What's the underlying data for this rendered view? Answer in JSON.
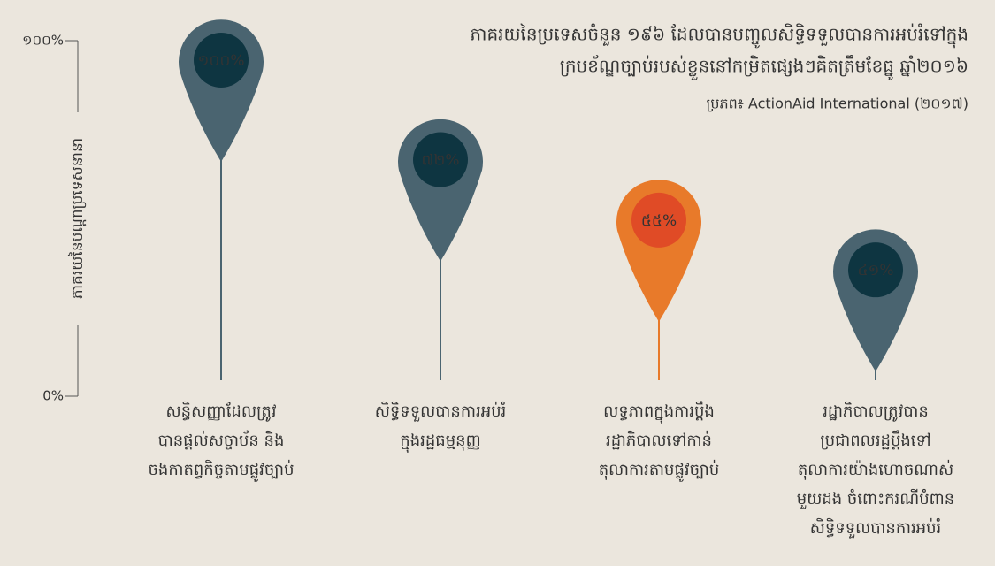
{
  "chart_data": {
    "type": "pin",
    "title": [
      "ភាគរយនៃប្រទេសចំនួន ១៩៦ ដែលបានបញ្ចូលសិទ្ធិទទួលបានការអប់រំទៅក្នុង",
      "ក្របខ័ណ្ឌច្បាប់របស់ខ្លួននៅកម្រិតផ្សេងៗគិតត្រឹមខែធ្នូ ឆ្នាំ២០១៦"
    ],
    "source": "ប្រភព៖ ActionAid International (២០១៧)",
    "ylabel": "ភាគរយនៃបណ្ដាប្រទេសនានា",
    "categories": [
      [
        "សន្ធិសញ្ញាដែលត្រូវ",
        "បានផ្ដល់សច្ចាប័ន និង",
        "ចងកាតព្វកិច្ចតាមផ្លូវច្បាប់"
      ],
      [
        "សិទ្ធិទទួលបានការអប់រំ",
        "ក្នុងរដ្ឋធម្មនុញ្ញ"
      ],
      [
        "លទ្ធភាពក្នុងការប្ដឹង",
        "រដ្ឋាភិបាលទៅកាន់",
        "តុលាការតាមផ្លូវច្បាប់"
      ],
      [
        "រដ្ឋាភិបាលត្រូវបាន",
        "ប្រជាពលរដ្ឋប្ដឹងទៅ",
        "តុលាការយ៉ាងហោចណាស់",
        "មួយដង ចំពោះករណីបំពាន",
        "សិទ្ធិទទួលបានការអប់រំ"
      ]
    ],
    "values": [
      100,
      72,
      55,
      41
    ],
    "value_labels": [
      "១០០%",
      "៧២%",
      "៥៥%",
      "៤១%"
    ],
    "colors": [
      "#4a6470",
      "#4a6470",
      "#e87a2a",
      "#4a6470"
    ],
    "inner_colors": [
      "#0e3541",
      "#0e3541",
      "#e04b26",
      "#0e3541"
    ],
    "ylim": [
      0,
      100
    ],
    "yticks": [
      {
        "value": 0,
        "label": "0%"
      },
      {
        "value": 100,
        "label": "១០០%"
      }
    ]
  }
}
